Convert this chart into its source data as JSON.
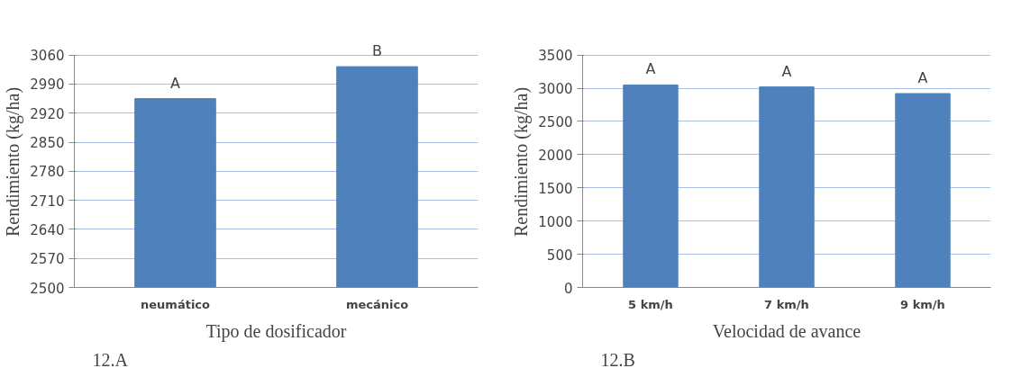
{
  "chart_data": [
    {
      "type": "bar",
      "categories": [
        "neumático",
        "mecánico"
      ],
      "values": [
        2955,
        3032
      ],
      "color": "#4f81bd",
      "ylabel": "Rendimiento (kg/ha)",
      "xlabel": "Tipo de dosificador",
      "ylim": [
        2500,
        3060
      ],
      "yticks": [
        2500,
        2570,
        2640,
        2710,
        2780,
        2850,
        2920,
        2990,
        3060
      ],
      "grid": "y",
      "annotations": [
        {
          "text": "A",
          "x": "neumático",
          "y": 2955
        },
        {
          "text": "B",
          "x": "mecánico",
          "y": 3032
        },
        "12.A"
      ]
    },
    {
      "type": "bar",
      "categories": [
        "5 km/h",
        "7 km/h",
        "9 km/h"
      ],
      "values": [
        3050,
        3020,
        2920
      ],
      "color": "#4f81bd",
      "ylabel": "Rendimiento (kg/ha)",
      "xlabel": "Velocidad de avance",
      "ylim": [
        0,
        3500
      ],
      "yticks": [
        0,
        500,
        1000,
        1500,
        2000,
        2500,
        3000,
        3500
      ],
      "grid": "y",
      "annotations": [
        {
          "text": "A",
          "x": "5 km/h",
          "y": 3050
        },
        {
          "text": "A",
          "x": "7 km/h",
          "y": 3020
        },
        {
          "text": "A",
          "x": "9 km/h",
          "y": 2920
        },
        "12.B"
      ]
    }
  ]
}
